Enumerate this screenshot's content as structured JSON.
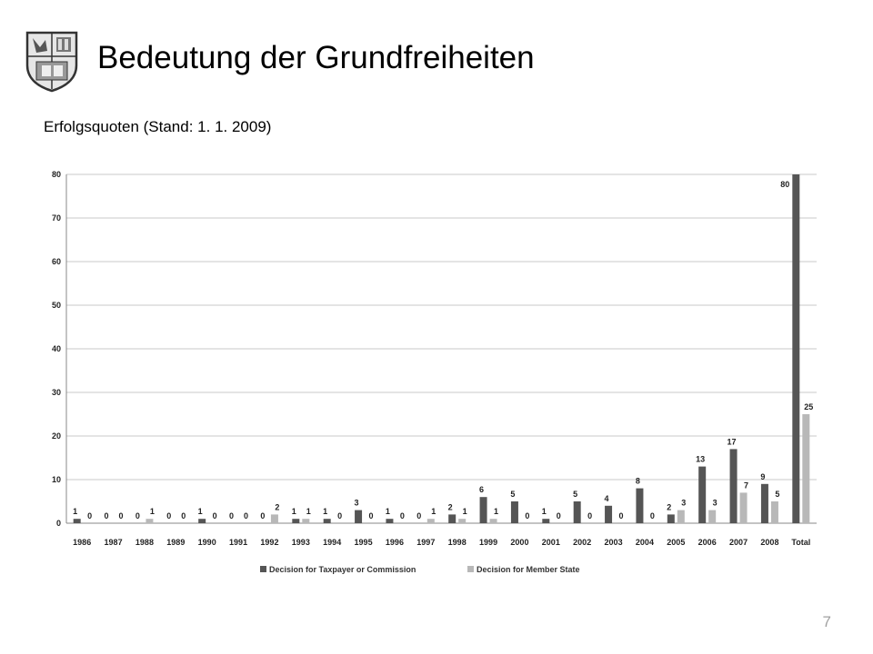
{
  "slide": {
    "title": "Bedeutung der Grundfreiheiten",
    "subtitle": "Erfolgsquoten (Stand: 1. 1. 2009)",
    "page_number": "7"
  },
  "logo": {
    "icon": "university-crest-icon"
  },
  "colors": {
    "series_taxpayer": "#555555",
    "series_member_state": "#b8b8b8",
    "grid": "#c8c8c8",
    "axis": "#888888"
  },
  "chart_data": {
    "type": "bar",
    "categories": [
      "1986",
      "1987",
      "1988",
      "1989",
      "1990",
      "1991",
      "1992",
      "1993",
      "1994",
      "1995",
      "1996",
      "1997",
      "1998",
      "1999",
      "2000",
      "2001",
      "2002",
      "2003",
      "2004",
      "2005",
      "2006",
      "2007",
      "2008",
      "Total"
    ],
    "series": [
      {
        "name": "Decision for Taxpayer or Commission",
        "values": [
          1,
          0,
          0,
          0,
          1,
          0,
          0,
          1,
          1,
          3,
          1,
          0,
          2,
          6,
          5,
          1,
          5,
          4,
          8,
          2,
          13,
          17,
          9,
          80
        ]
      },
      {
        "name": "Decision for Member State",
        "values": [
          0,
          0,
          1,
          0,
          0,
          0,
          2,
          1,
          0,
          0,
          0,
          1,
          1,
          1,
          0,
          0,
          0,
          0,
          0,
          3,
          3,
          7,
          5,
          25
        ]
      }
    ],
    "ylim": [
      0,
      80
    ],
    "yticks": [
      0,
      10,
      20,
      30,
      40,
      50,
      60,
      70,
      80
    ],
    "grid": true,
    "legend_position": "bottom",
    "data_labels": true
  }
}
